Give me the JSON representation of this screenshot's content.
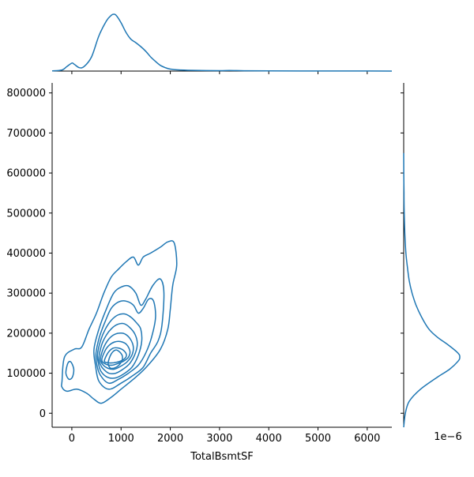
{
  "chart_data": {
    "type": "kde-jointplot",
    "color": "#1f77b4",
    "grid": false,
    "main": {
      "xlabel": "TotalBsmtSF",
      "ylabel": "",
      "xlim": [
        -400,
        6500
      ],
      "ylim": [
        -35000,
        825000
      ],
      "xticks": [
        0,
        1000,
        2000,
        3000,
        4000,
        5000,
        6000
      ],
      "xtick_labels": [
        "0",
        "1000",
        "2000",
        "3000",
        "4000",
        "5000",
        "6000"
      ],
      "yticks": [
        0,
        100000,
        200000,
        300000,
        400000,
        500000,
        600000,
        700000,
        800000
      ],
      "ytick_labels": [
        "0",
        "100000",
        "200000",
        "300000",
        "400000",
        "500000",
        "600000",
        "700000",
        "800000"
      ],
      "contours": [
        {
          "level": 1,
          "points": [
            [
              -200,
              80000
            ],
            [
              -150,
              140000
            ],
            [
              50,
              160000
            ],
            [
              200,
              165000
            ],
            [
              350,
              210000
            ],
            [
              500,
              250000
            ],
            [
              650,
              300000
            ],
            [
              800,
              340000
            ],
            [
              950,
              360000
            ],
            [
              1100,
              378000
            ],
            [
              1250,
              390000
            ],
            [
              1350,
              370000
            ],
            [
              1450,
              390000
            ],
            [
              1600,
              400000
            ],
            [
              1800,
              415000
            ],
            [
              1950,
              428000
            ],
            [
              2080,
              425000
            ],
            [
              2130,
              370000
            ],
            [
              2050,
              320000
            ],
            [
              2000,
              260000
            ],
            [
              1950,
              210000
            ],
            [
              1800,
              160000
            ],
            [
              1550,
              120000
            ],
            [
              1300,
              90000
            ],
            [
              1000,
              60000
            ],
            [
              800,
              40000
            ],
            [
              600,
              25000
            ],
            [
              450,
              35000
            ],
            [
              300,
              50000
            ],
            [
              100,
              60000
            ],
            [
              -100,
              55000
            ],
            [
              -200,
              65000
            ]
          ]
        },
        {
          "level": 2,
          "points": [
            [
              -120,
              100000
            ],
            [
              -80,
              125000
            ],
            [
              -20,
              128000
            ],
            [
              40,
              110000
            ],
            [
              10,
              90000
            ],
            [
              -60,
              85000
            ]
          ]
        },
        {
          "level": 3,
          "points": [
            [
              450,
              160000
            ],
            [
              550,
              210000
            ],
            [
              700,
              260000
            ],
            [
              850,
              300000
            ],
            [
              1000,
              315000
            ],
            [
              1150,
              318000
            ],
            [
              1300,
              300000
            ],
            [
              1400,
              270000
            ],
            [
              1500,
              285000
            ],
            [
              1650,
              320000
            ],
            [
              1800,
              335000
            ],
            [
              1870,
              300000
            ],
            [
              1830,
              220000
            ],
            [
              1750,
              180000
            ],
            [
              1600,
              150000
            ],
            [
              1450,
              115000
            ],
            [
              1250,
              95000
            ],
            [
              1000,
              75000
            ],
            [
              750,
              60000
            ],
            [
              550,
              80000
            ],
            [
              480,
              120000
            ]
          ]
        },
        {
          "level": 4,
          "points": [
            [
              490,
              150000
            ],
            [
              560,
              190000
            ],
            [
              680,
              230000
            ],
            [
              800,
              262000
            ],
            [
              950,
              278000
            ],
            [
              1100,
              280000
            ],
            [
              1250,
              270000
            ],
            [
              1350,
              250000
            ],
            [
              1450,
              262000
            ],
            [
              1560,
              285000
            ],
            [
              1660,
              280000
            ],
            [
              1700,
              240000
            ],
            [
              1620,
              190000
            ],
            [
              1500,
              150000
            ],
            [
              1350,
              120000
            ],
            [
              1150,
              100000
            ],
            [
              950,
              85000
            ],
            [
              750,
              75000
            ],
            [
              580,
              95000
            ],
            [
              510,
              120000
            ]
          ]
        },
        {
          "level": 5,
          "points": [
            [
              520,
              145000
            ],
            [
              580,
              180000
            ],
            [
              680,
              210000
            ],
            [
              800,
              232000
            ],
            [
              930,
              245000
            ],
            [
              1070,
              248000
            ],
            [
              1200,
              240000
            ],
            [
              1320,
              225000
            ],
            [
              1400,
              210000
            ],
            [
              1420,
              180000
            ],
            [
              1350,
              145000
            ],
            [
              1220,
              115000
            ],
            [
              1050,
              98000
            ],
            [
              880,
              88000
            ],
            [
              720,
              90000
            ],
            [
              590,
              105000
            ],
            [
              540,
              125000
            ]
          ]
        },
        {
          "level": 6,
          "points": [
            [
              550,
              140000
            ],
            [
              610,
              172000
            ],
            [
              700,
              195000
            ],
            [
              810,
              212000
            ],
            [
              930,
              222000
            ],
            [
              1050,
              224000
            ],
            [
              1170,
              215000
            ],
            [
              1280,
              198000
            ],
            [
              1330,
              175000
            ],
            [
              1290,
              150000
            ],
            [
              1180,
              125000
            ],
            [
              1040,
              110000
            ],
            [
              890,
              100000
            ],
            [
              750,
              100000
            ],
            [
              630,
              112000
            ],
            [
              570,
              125000
            ]
          ]
        },
        {
          "level": 7,
          "points": [
            [
              580,
              135000
            ],
            [
              640,
              162000
            ],
            [
              730,
              182000
            ],
            [
              840,
              195000
            ],
            [
              960,
              200000
            ],
            [
              1080,
              198000
            ],
            [
              1190,
              185000
            ],
            [
              1250,
              165000
            ],
            [
              1220,
              145000
            ],
            [
              1120,
              128000
            ],
            [
              990,
              117000
            ],
            [
              860,
              110000
            ],
            [
              740,
              112000
            ],
            [
              640,
              120000
            ]
          ]
        },
        {
          "level": 8,
          "points": [
            [
              610,
              132000
            ],
            [
              670,
              155000
            ],
            [
              760,
              170000
            ],
            [
              870,
              178000
            ],
            [
              990,
              179000
            ],
            [
              1110,
              172000
            ],
            [
              1180,
              155000
            ],
            [
              1150,
              140000
            ],
            [
              1050,
              130000
            ],
            [
              930,
              124000
            ],
            [
              820,
              120000
            ],
            [
              700,
              122000
            ]
          ]
        },
        {
          "level": 9,
          "points": [
            [
              660,
              130000
            ],
            [
              730,
              150000
            ],
            [
              830,
              162000
            ],
            [
              940,
              163000
            ],
            [
              1050,
              157000
            ],
            [
              1110,
              145000
            ],
            [
              1060,
              135000
            ],
            [
              960,
              129000
            ],
            [
              850,
              126000
            ],
            [
              740,
              126000
            ]
          ]
        },
        {
          "level": 10,
          "points": [
            [
              740,
              128000
            ],
            [
              800,
              148000
            ],
            [
              890,
              158000
            ],
            [
              980,
              152000
            ],
            [
              1030,
              140000
            ],
            [
              990,
              125000
            ],
            [
              900,
              115000
            ],
            [
              800,
              112000
            ],
            [
              750,
              118000
            ]
          ]
        }
      ]
    },
    "marginal_x": {
      "x": [
        -400,
        -200,
        -100,
        0,
        50,
        150,
        250,
        400,
        550,
        700,
        800,
        850,
        900,
        1000,
        1100,
        1200,
        1300,
        1400,
        1500,
        1600,
        1700,
        1800,
        1900,
        2000,
        2200,
        2500,
        3000,
        3200,
        3500,
        4000,
        5000,
        6000,
        6500
      ],
      "density": [
        0.003,
        0.02,
        0.08,
        0.14,
        0.12,
        0.06,
        0.08,
        0.25,
        0.62,
        0.88,
        0.98,
        1.0,
        0.98,
        0.85,
        0.68,
        0.56,
        0.5,
        0.43,
        0.35,
        0.25,
        0.17,
        0.1,
        0.06,
        0.035,
        0.02,
        0.012,
        0.007,
        0.01,
        0.006,
        0.004,
        0.002,
        0.001,
        0.0
      ]
    },
    "marginal_y": {
      "y": [
        -35000,
        0,
        30000,
        60000,
        90000,
        110000,
        130000,
        140000,
        150000,
        170000,
        190000,
        210000,
        240000,
        270000,
        300000,
        330000,
        360000,
        400000,
        450000,
        500000,
        550000,
        600000,
        650000
      ],
      "density": [
        0.0,
        0.03,
        0.1,
        0.3,
        0.6,
        0.82,
        0.97,
        1.0,
        0.97,
        0.8,
        0.6,
        0.45,
        0.32,
        0.22,
        0.15,
        0.1,
        0.07,
        0.04,
        0.02,
        0.01,
        0.005,
        0.002,
        0.0
      ]
    },
    "offset_label": "1e−6"
  }
}
